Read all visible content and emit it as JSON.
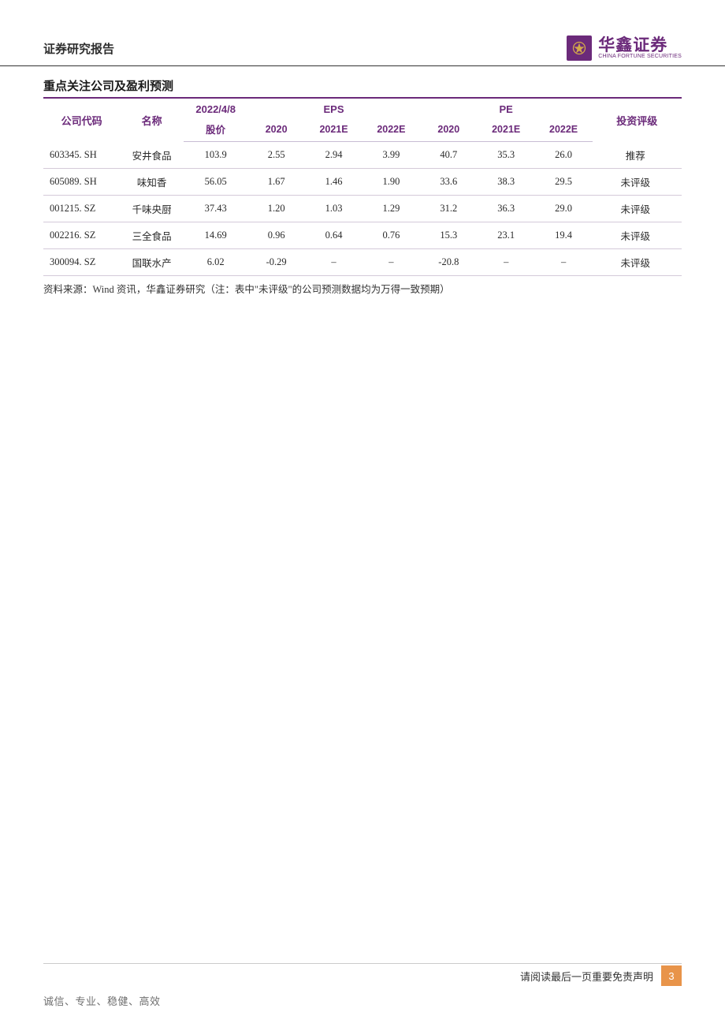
{
  "header": {
    "report_type": "证券研究报告",
    "logo_main": "华鑫证券",
    "logo_sub": "CHINA FORTUNE SECURITIES"
  },
  "section": {
    "title": "重点关注公司及盈利预测"
  },
  "table": {
    "headers": {
      "code": "公司代码",
      "name": "名称",
      "price_group_top": "2022/4/8",
      "price_group_bottom": "股价",
      "eps": "EPS",
      "pe": "PE",
      "rating": "投资评级",
      "sub_years": [
        "2020",
        "2021E",
        "2022E",
        "2020",
        "2021E",
        "2022E"
      ]
    },
    "rows": [
      {
        "code": "603345. SH",
        "name": "安井食品",
        "price": "103.9",
        "eps2020": "2.55",
        "eps2021e": "2.94",
        "eps2022e": "3.99",
        "pe2020": "40.7",
        "pe2021e": "35.3",
        "pe2022e": "26.0",
        "rating": "推荐"
      },
      {
        "code": "605089. SH",
        "name": "味知香",
        "price": "56.05",
        "eps2020": "1.67",
        "eps2021e": "1.46",
        "eps2022e": "1.90",
        "pe2020": "33.6",
        "pe2021e": "38.3",
        "pe2022e": "29.5",
        "rating": "未评级"
      },
      {
        "code": "001215. SZ",
        "name": "千味央厨",
        "price": "37.43",
        "eps2020": "1.20",
        "eps2021e": "1.03",
        "eps2022e": "1.29",
        "pe2020": "31.2",
        "pe2021e": "36.3",
        "pe2022e": "29.0",
        "rating": "未评级"
      },
      {
        "code": "002216. SZ",
        "name": "三全食品",
        "price": "14.69",
        "eps2020": "0.96",
        "eps2021e": "0.64",
        "eps2022e": "0.76",
        "pe2020": "15.3",
        "pe2021e": "23.1",
        "pe2022e": "19.4",
        "rating": "未评级"
      },
      {
        "code": "300094. SZ",
        "name": "国联水产",
        "price": "6.02",
        "eps2020": "-0.29",
        "eps2021e": "–",
        "eps2022e": "–",
        "pe2020": "-20.8",
        "pe2021e": "–",
        "pe2022e": "–",
        "rating": "未评级"
      }
    ],
    "column_widths": [
      "12%",
      "10%",
      "10%",
      "9%",
      "9%",
      "9%",
      "9%",
      "9%",
      "9%",
      "14%"
    ]
  },
  "footnote": "资料来源：Wind 资讯，华鑫证券研究（注：表中\"未评级\"的公司预测数据均为万得一致预期）",
  "footer": {
    "disclaimer": "请阅读最后一页重要免责声明",
    "page_number": "3",
    "motto": "诚信、专业、稳健、高效"
  },
  "colors": {
    "brand_purple": "#6b2a7a",
    "accent_orange": "#e8944a",
    "text_dark": "#2a2a2a",
    "border_light": "#d4cad9"
  }
}
